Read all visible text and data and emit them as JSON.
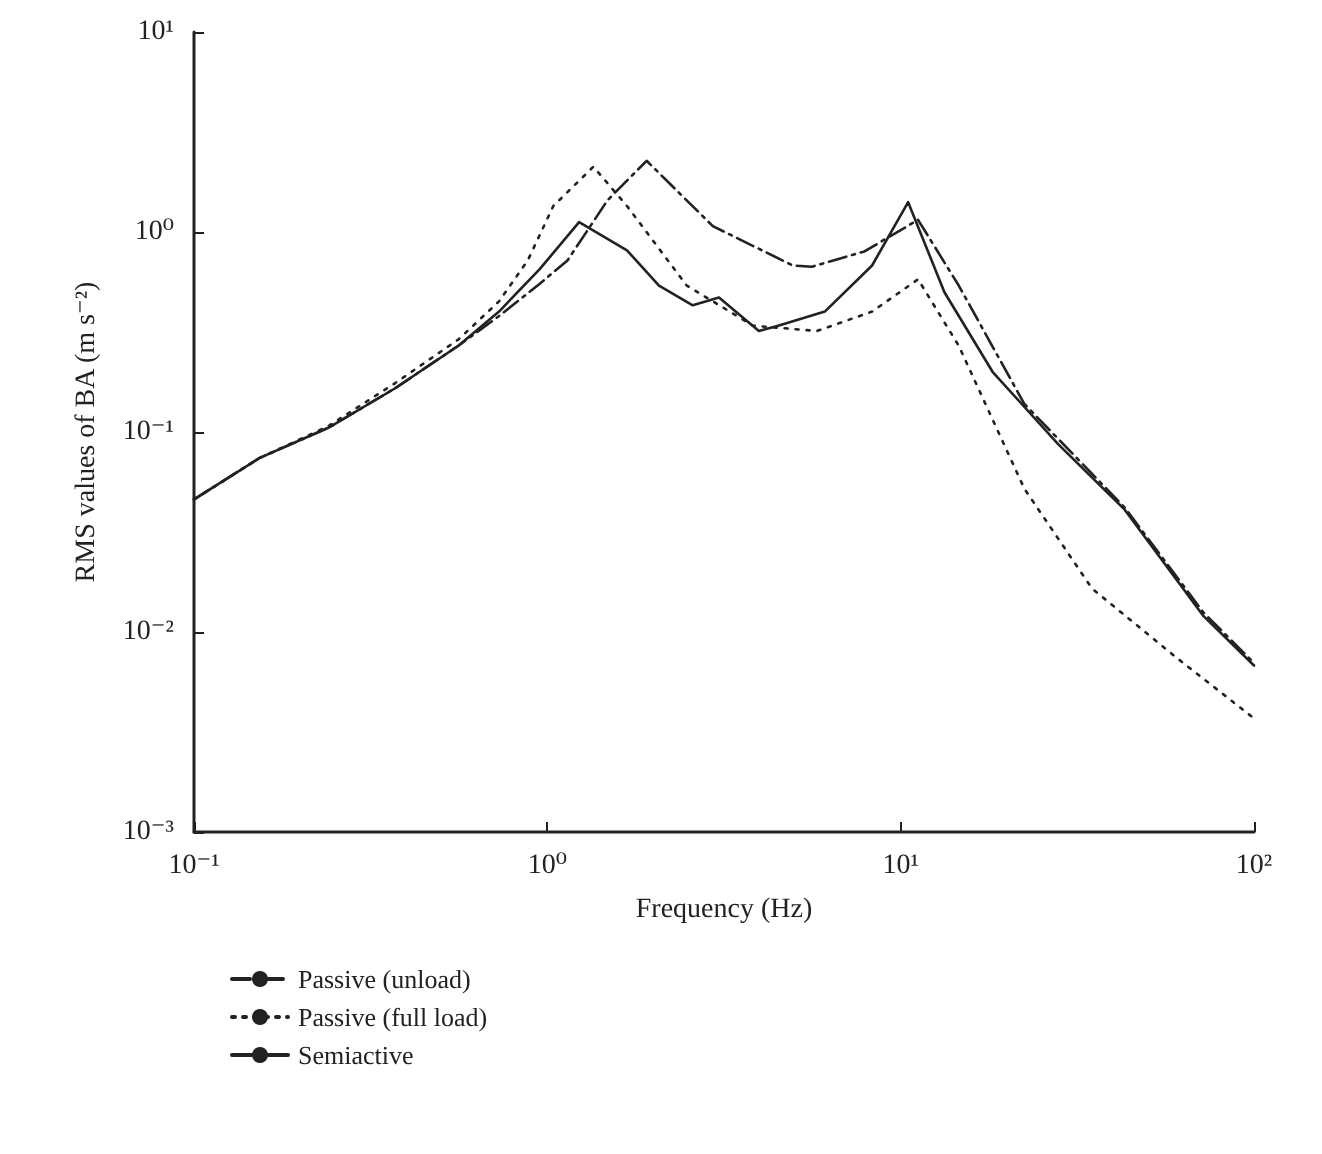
{
  "chart_data": {
    "type": "line",
    "xlabel": "Frequency (Hz)",
    "ylabel": "RMS values of BA (m s⁻²)",
    "log": "xy",
    "grid": false,
    "legend": "bottom",
    "marker": "none",
    "xlim": [
      0.1,
      100
    ],
    "ylim": [
      0.001,
      10
    ],
    "xticks": [
      {
        "value": 0.1,
        "label": "10⁻¹"
      },
      {
        "value": 1,
        "label": "10⁰"
      },
      {
        "value": 10,
        "label": "10¹"
      },
      {
        "value": 100,
        "label": "10²"
      }
    ],
    "yticks": [
      {
        "value": 0.001,
        "label": "10⁻³"
      },
      {
        "value": 0.01,
        "label": "10⁻²"
      },
      {
        "value": 0.1,
        "label": "10⁻¹"
      },
      {
        "value": 1,
        "label": "10⁰"
      },
      {
        "value": 10,
        "label": "10¹"
      }
    ],
    "series": [
      {
        "name": "Passive (unload)",
        "color": "#222222",
        "line_style": "dashdot",
        "x": [
          0.1,
          0.153,
          0.24,
          0.37,
          0.56,
          0.73,
          0.95,
          1.14,
          1.48,
          1.91,
          2.94,
          4.95,
          5.6,
          7.9,
          11.2,
          14.6,
          22.4,
          43,
          72,
          100
        ],
        "values": [
          0.046,
          0.074,
          0.105,
          0.165,
          0.27,
          0.38,
          0.55,
          0.72,
          1.44,
          2.27,
          1.07,
          0.68,
          0.67,
          0.8,
          1.15,
          0.54,
          0.138,
          0.042,
          0.0125,
          0.007
        ]
      },
      {
        "name": "Passive (full load)",
        "color": "#222222",
        "line_style": "dotted",
        "x": [
          0.1,
          0.153,
          0.24,
          0.37,
          0.56,
          0.73,
          0.88,
          1.04,
          1.35,
          1.68,
          2.48,
          3.82,
          5.8,
          8.3,
          11.2,
          14.6,
          22.4,
          34.8,
          60,
          100
        ],
        "values": [
          0.046,
          0.074,
          0.107,
          0.175,
          0.29,
          0.45,
          0.72,
          1.35,
          2.12,
          1.35,
          0.54,
          0.34,
          0.32,
          0.4,
          0.58,
          0.27,
          0.052,
          0.0165,
          0.0075,
          0.0037
        ]
      },
      {
        "name": "Semiactive",
        "color": "#222222",
        "line_style": "solid",
        "x": [
          0.1,
          0.153,
          0.24,
          0.37,
          0.56,
          0.73,
          0.95,
          1.23,
          1.68,
          2.07,
          2.58,
          3.06,
          3.97,
          4.5,
          6.1,
          8.3,
          10.5,
          13.3,
          18.2,
          27.9,
          43,
          72,
          100
        ],
        "values": [
          0.046,
          0.074,
          0.105,
          0.165,
          0.27,
          0.4,
          0.65,
          1.12,
          0.81,
          0.54,
          0.43,
          0.47,
          0.32,
          0.34,
          0.4,
          0.68,
          1.41,
          0.5,
          0.2,
          0.087,
          0.041,
          0.012,
          0.0068
        ]
      }
    ]
  }
}
